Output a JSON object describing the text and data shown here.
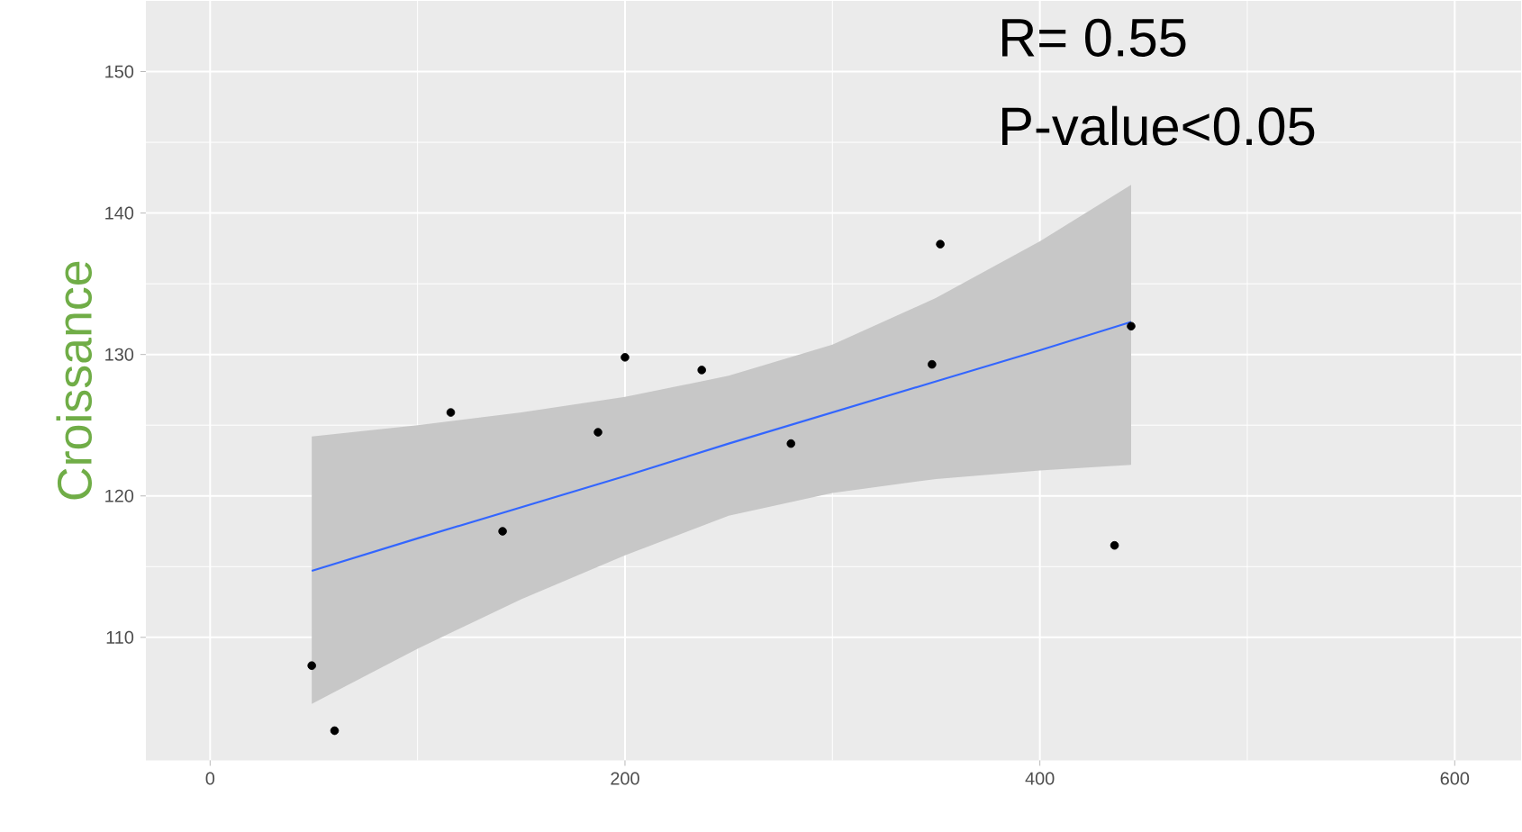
{
  "chart_data": {
    "type": "scatter",
    "ylabel": "Croissance",
    "annotations": [
      "R= 0.55",
      "P-value<0.05"
    ],
    "xlim": [
      -31,
      632
    ],
    "ylim": [
      101.3,
      155
    ],
    "xticks": [
      0,
      200,
      400,
      600
    ],
    "yticks": [
      110,
      120,
      130,
      140,
      150
    ],
    "grid": true,
    "series": [
      {
        "color": "#000000",
        "marker": "circle",
        "x": [
          49,
          60,
          116,
          141,
          187,
          200,
          237,
          280,
          348,
          352,
          436,
          444
        ],
        "values": [
          108,
          103.4,
          125.9,
          117.5,
          124.5,
          129.8,
          128.9,
          123.7,
          129.3,
          137.8,
          116.5,
          132
        ]
      },
      {
        "type": "line",
        "marker": "none",
        "color": "#3366ff",
        "x": [
          49,
          100,
          150,
          200,
          250,
          300,
          350,
          400,
          444
        ],
        "values": [
          114.7,
          117.0,
          119.2,
          121.4,
          123.7,
          125.9,
          128.1,
          130.3,
          132.3
        ],
        "lower": [
          105.3,
          109.2,
          112.7,
          115.8,
          118.6,
          120.2,
          121.2,
          121.8,
          122.2
        ],
        "upper": [
          124.2,
          125.0,
          125.9,
          127.0,
          128.5,
          130.7,
          134.0,
          138.0,
          142
        ]
      }
    ]
  }
}
